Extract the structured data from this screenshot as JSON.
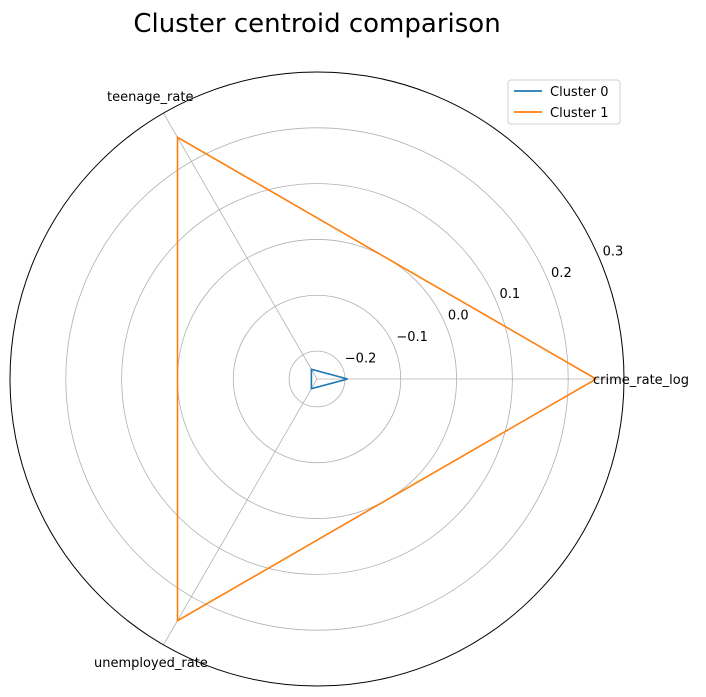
{
  "chart_data": {
    "type": "radar",
    "title": "Cluster centroid comparison",
    "axes": [
      "crime_rate_log",
      "teenage_rate",
      "unemployed_rate"
    ],
    "radial_ticks": [
      -0.2,
      -0.1,
      0.0,
      0.1,
      0.2,
      0.3
    ],
    "radial_tick_labels": [
      "−0.2",
      "−0.1",
      "0.0",
      "0.1",
      "0.2",
      "0.3"
    ],
    "rlim": [
      -0.25,
      0.3
    ],
    "grid": true,
    "legend_position": "top-right",
    "series": [
      {
        "name": "Cluster 0",
        "color": "#1f77b4",
        "values": [
          -0.195,
          -0.23,
          -0.23
        ]
      },
      {
        "name": "Cluster 1",
        "color": "#ff7f0e",
        "values": [
          0.25,
          0.25,
          0.25
        ]
      }
    ]
  }
}
